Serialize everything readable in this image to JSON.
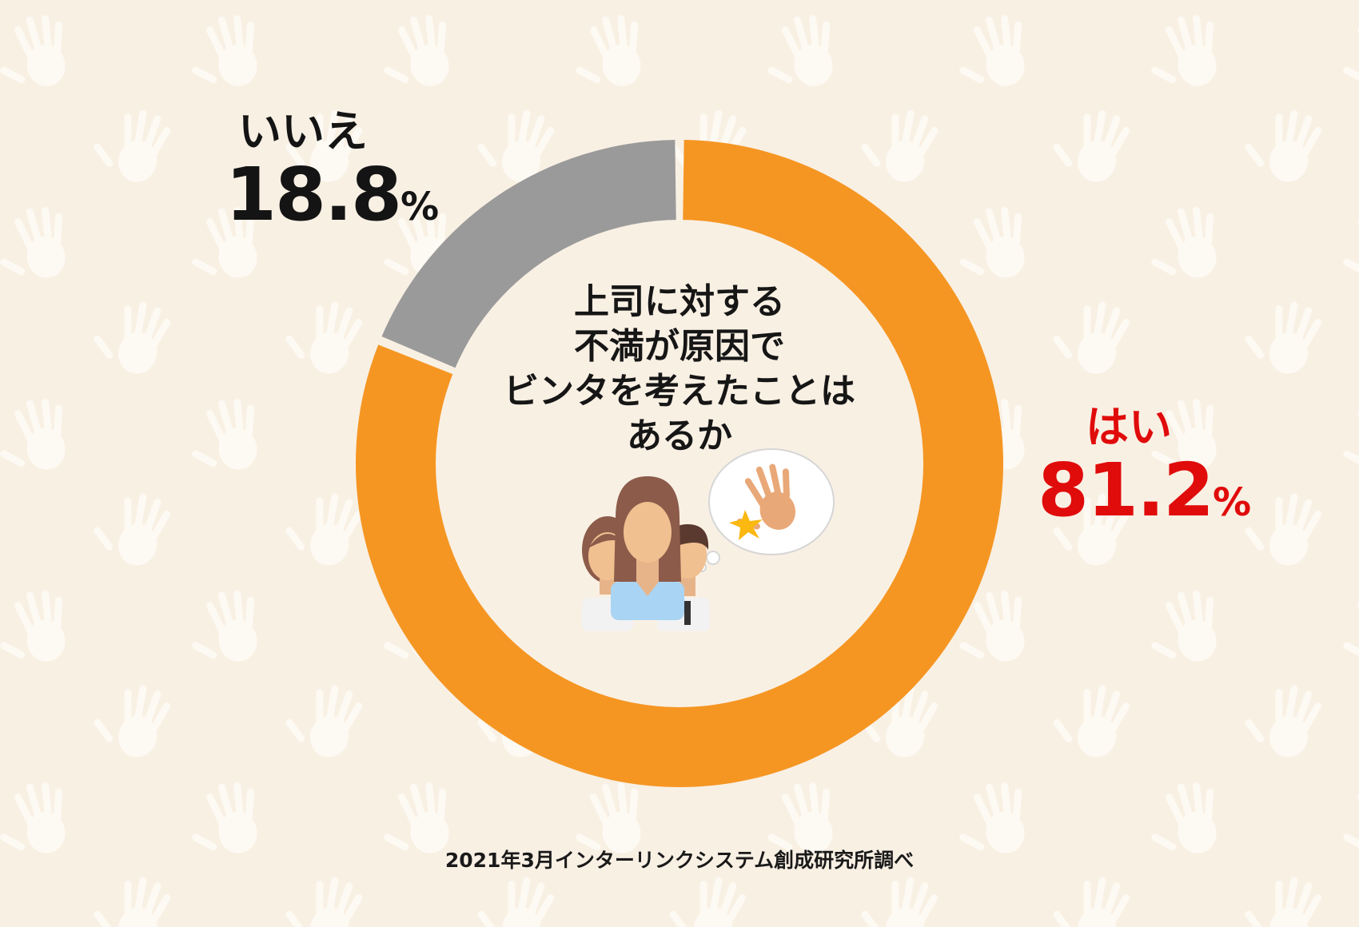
{
  "chart_data": {
    "type": "pie",
    "donut": true,
    "title_lines": [
      "上司に対する",
      "不満が原因で",
      "ビンタを考えたことは",
      "あるか"
    ],
    "slices": [
      {
        "label": "はい",
        "value": 81.2,
        "display": "81.2",
        "unit": "%",
        "color": "#f59623",
        "label_color": "#e00b0b"
      },
      {
        "label": "いいえ",
        "value": 18.8,
        "display": "18.8",
        "unit": "%",
        "color": "#9a9a9a",
        "label_color": "#141414"
      }
    ]
  },
  "source": "2021年3月インターリンクシステム創成研究所調べ",
  "icons": [
    "hand-print-pattern",
    "people-group-icon",
    "slap-hand-thought-bubble-icon"
  ],
  "colors": {
    "background": "#f9f0e4",
    "pattern": "#fdf9f3"
  }
}
